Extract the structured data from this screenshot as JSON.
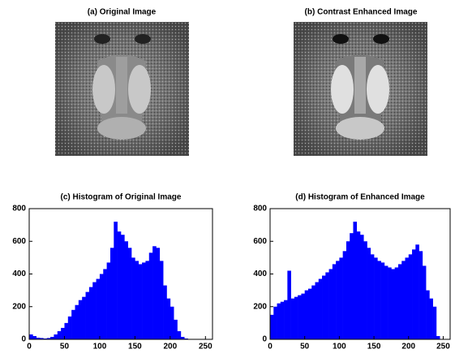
{
  "images": [
    {
      "title": "(a) Original Image"
    },
    {
      "title": "(b) Contrast Enhanced Image"
    }
  ],
  "chart_data": [
    {
      "type": "histogram",
      "title": "(c) Histogram of Original Image",
      "color": "#0000ff",
      "bins": [
        0,
        5,
        10,
        15,
        20,
        25,
        30,
        35,
        40,
        45,
        50,
        55,
        60,
        65,
        70,
        75,
        80,
        85,
        90,
        95,
        100,
        105,
        110,
        115,
        120,
        125,
        130,
        135,
        140,
        145,
        150,
        155,
        160,
        165,
        170,
        175,
        180,
        185,
        190,
        195,
        200,
        205,
        210,
        215,
        220,
        225,
        230,
        235,
        240,
        245,
        250,
        255
      ],
      "values": [
        30,
        20,
        10,
        8,
        5,
        8,
        15,
        30,
        50,
        70,
        100,
        140,
        180,
        210,
        240,
        260,
        290,
        320,
        350,
        370,
        400,
        430,
        470,
        560,
        720,
        660,
        640,
        600,
        560,
        500,
        480,
        460,
        470,
        480,
        530,
        570,
        560,
        480,
        330,
        250,
        200,
        120,
        50,
        15,
        5,
        0,
        0,
        0,
        0,
        0,
        0
      ],
      "xlim": [
        0,
        260
      ],
      "xticks": [
        0,
        50,
        100,
        150,
        200,
        250
      ],
      "ylim": [
        0,
        800
      ],
      "yticks": [
        0,
        200,
        400,
        600,
        800
      ]
    },
    {
      "type": "histogram",
      "title": "(d) Histogram of Enhanced Image",
      "color": "#0000ff",
      "bins": [
        0,
        5,
        10,
        15,
        20,
        25,
        30,
        35,
        40,
        45,
        50,
        55,
        60,
        65,
        70,
        75,
        80,
        85,
        90,
        95,
        100,
        105,
        110,
        115,
        120,
        125,
        130,
        135,
        140,
        145,
        150,
        155,
        160,
        165,
        170,
        175,
        180,
        185,
        190,
        195,
        200,
        205,
        210,
        215,
        220,
        225,
        230,
        235,
        240,
        245,
        250,
        255
      ],
      "values": [
        150,
        200,
        220,
        230,
        240,
        420,
        250,
        260,
        270,
        280,
        300,
        310,
        330,
        350,
        370,
        390,
        410,
        430,
        460,
        480,
        500,
        540,
        600,
        650,
        720,
        660,
        640,
        600,
        560,
        520,
        500,
        480,
        470,
        450,
        440,
        430,
        440,
        460,
        480,
        500,
        520,
        550,
        580,
        540,
        450,
        300,
        250,
        200,
        20,
        0,
        0
      ],
      "xlim": [
        0,
        260
      ],
      "xticks": [
        0,
        50,
        100,
        150,
        200,
        250
      ],
      "ylim": [
        0,
        800
      ],
      "yticks": [
        0,
        200,
        400,
        600,
        800
      ]
    }
  ]
}
